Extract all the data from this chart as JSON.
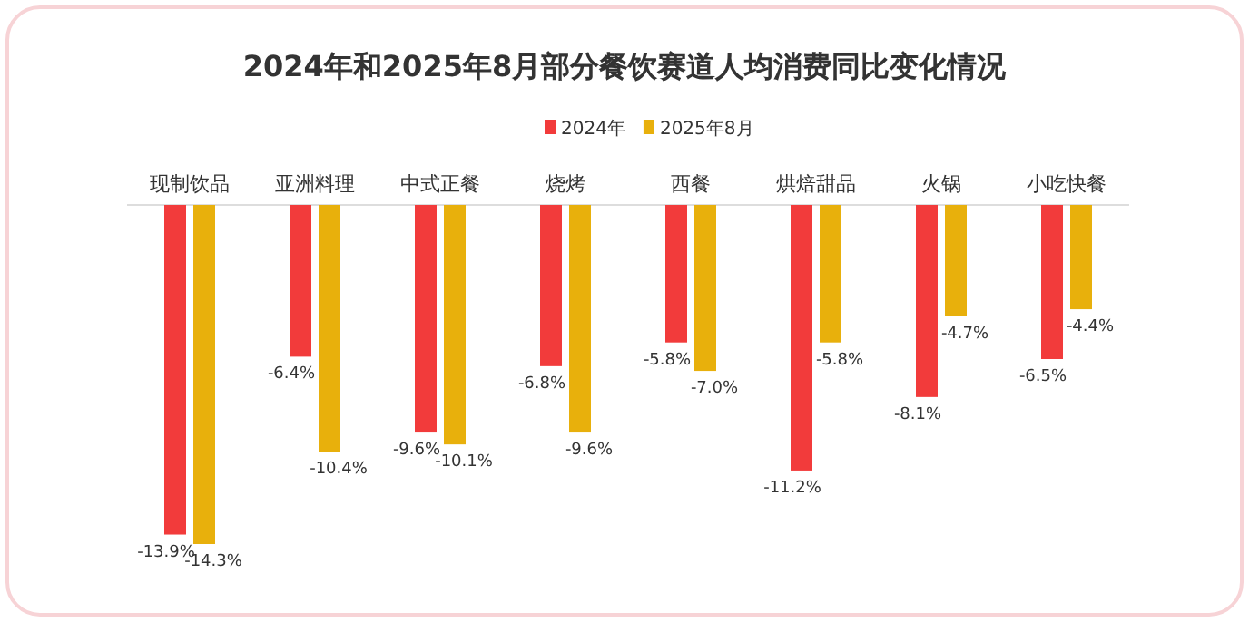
{
  "chart_data": {
    "type": "bar",
    "title": "2024年和2025年8月部分餐饮赛道人均消费同比变化情况",
    "categories": [
      "现制饮品",
      "亚洲料理",
      "中式正餐",
      "烧烤",
      "西餐",
      "烘焙甜品",
      "火锅",
      "小吃快餐"
    ],
    "series": [
      {
        "name": "2024年",
        "color": "#f23b3b",
        "values": [
          -13.9,
          -6.4,
          -9.6,
          -6.8,
          -5.8,
          -11.2,
          -8.1,
          -6.5
        ],
        "value_labels": [
          "-13.9%",
          "-6.4%",
          "-9.6%",
          "-6.8%",
          "-5.8%",
          "-11.2%",
          "-8.1%",
          "-6.5%"
        ]
      },
      {
        "name": "2025年8月",
        "color": "#e8b00c",
        "values": [
          -14.3,
          -10.4,
          -10.1,
          -9.6,
          -7.0,
          -5.8,
          -4.7,
          -4.4
        ],
        "value_labels": [
          "-14.3%",
          "-10.4%",
          "-10.1%",
          "-9.6%",
          "-7.0%",
          "-5.8%",
          "-4.7%",
          "-4.4%"
        ]
      }
    ],
    "legend": "top right"
  }
}
